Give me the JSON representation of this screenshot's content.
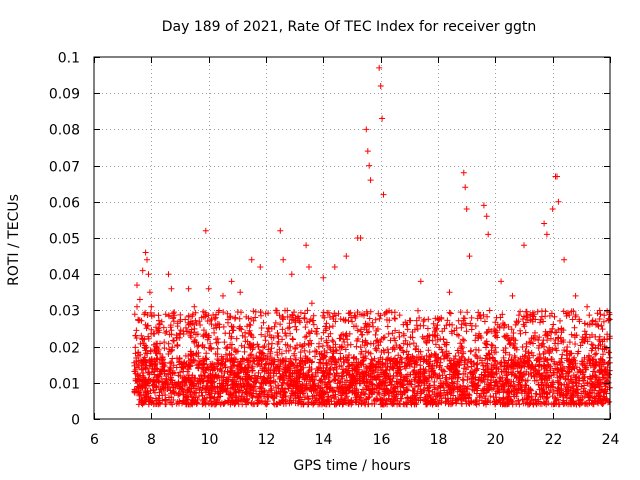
{
  "chart_data": {
    "type": "scatter",
    "title": "Day 189 of 2021, Rate Of TEC Index for receiver ggtn",
    "xlabel": "GPS time / hours",
    "ylabel": "ROTI / TECUs",
    "xlim": [
      6,
      24
    ],
    "ylim": [
      0,
      0.1
    ],
    "x_ticks": [
      6,
      8,
      10,
      12,
      14,
      16,
      18,
      20,
      22,
      24
    ],
    "x_tick_labels": [
      "6",
      "8",
      "10",
      "12",
      "14",
      "16",
      "18",
      "20",
      "22",
      "24"
    ],
    "y_ticks": [
      0,
      0.01,
      0.02,
      0.03,
      0.04,
      0.05,
      0.06,
      0.07,
      0.08,
      0.09,
      0.1
    ],
    "y_tick_labels": [
      "0",
      "0.01",
      "0.02",
      "0.03",
      "0.04",
      "0.05",
      "0.06",
      "0.07",
      "0.08",
      "0.09",
      "0.1"
    ],
    "grid": true,
    "marker": "+",
    "color": "#ff0000",
    "series": [
      {
        "name": "ROTI",
        "x": [
          7.5,
          7.5,
          7.6,
          7.7,
          7.8,
          7.85,
          7.9,
          7.95,
          8.0,
          8.6,
          8.7,
          9.3,
          9.5,
          9.9,
          10.0,
          10.5,
          10.8,
          11.1,
          11.5,
          11.8,
          12.5,
          12.6,
          12.9,
          13.4,
          13.5,
          13.6,
          14.0,
          14.4,
          14.8,
          15.2,
          15.3,
          15.5,
          15.55,
          15.6,
          15.65,
          15.95,
          16.0,
          16.05,
          16.1,
          17.4,
          18.4,
          18.9,
          18.95,
          19.0,
          19.1,
          19.6,
          19.7,
          19.75,
          20.2,
          20.6,
          21.0,
          21.7,
          21.8,
          22.0,
          22.1,
          22.15,
          22.2,
          22.4,
          22.8,
          23.2,
          23.5,
          23.9
        ],
        "y": [
          0.037,
          0.031,
          0.033,
          0.041,
          0.046,
          0.044,
          0.04,
          0.035,
          0.031,
          0.04,
          0.036,
          0.036,
          0.031,
          0.052,
          0.036,
          0.034,
          0.038,
          0.035,
          0.044,
          0.042,
          0.052,
          0.044,
          0.04,
          0.048,
          0.042,
          0.032,
          0.039,
          0.042,
          0.045,
          0.05,
          0.05,
          0.08,
          0.074,
          0.07,
          0.066,
          0.097,
          0.092,
          0.083,
          0.062,
          0.038,
          0.035,
          0.068,
          0.064,
          0.058,
          0.045,
          0.059,
          0.056,
          0.051,
          0.038,
          0.034,
          0.048,
          0.054,
          0.051,
          0.058,
          0.067,
          0.067,
          0.06,
          0.044,
          0.034,
          0.031,
          0.027,
          0.022
        ],
        "bulk_x_range": [
          7.4,
          24
        ],
        "bulk_y_range": [
          0.004,
          0.03
        ]
      }
    ]
  }
}
